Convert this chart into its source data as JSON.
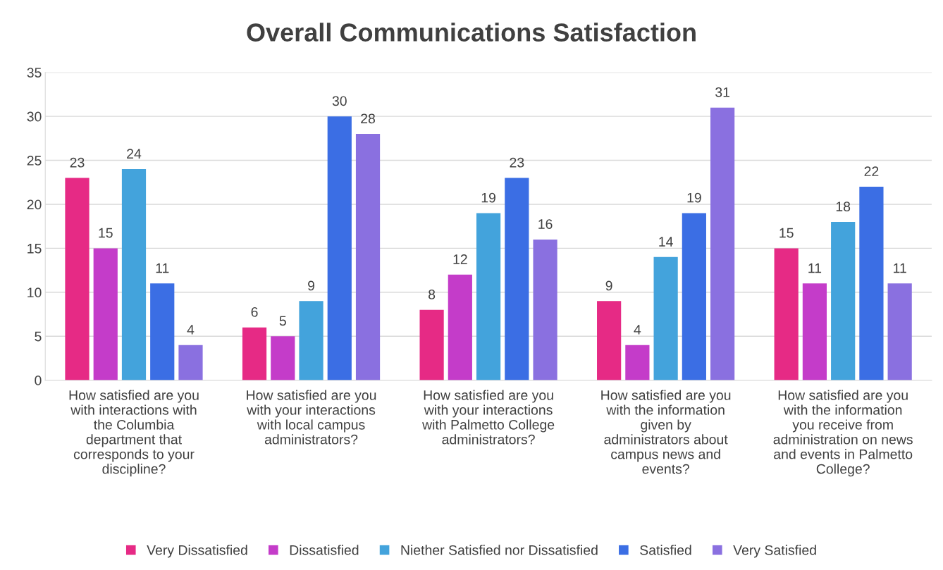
{
  "chart_data": {
    "type": "bar",
    "title": "Overall Communications Satisfaction",
    "categories": [
      "How satisfied are you with interactions with the Columbia department that corresponds to your discipline?",
      "How satisfied are you with your interactions with local campus administrators?",
      "How satisfied are you with your interactions with Palmetto College administrators?",
      "How satisfied are you with the information given by administrators about campus news and events?",
      "How satisfied are you with the information you receive from administration on news and events in Palmetto College?"
    ],
    "series": [
      {
        "name": "Very Dissatisfied",
        "color": "#e62a85",
        "values": [
          23,
          6,
          8,
          9,
          15
        ]
      },
      {
        "name": "Dissatisfied",
        "color": "#c43cc9",
        "values": [
          15,
          5,
          12,
          4,
          11
        ]
      },
      {
        "name": "Niether Satisfied nor Dissatisfied",
        "color": "#43a3dc",
        "values": [
          24,
          9,
          19,
          14,
          18
        ]
      },
      {
        "name": "Satisfied",
        "color": "#3b6ee4",
        "values": [
          11,
          30,
          23,
          19,
          22
        ]
      },
      {
        "name": "Very Satisfied",
        "color": "#8a70e0",
        "values": [
          4,
          28,
          16,
          31,
          11
        ]
      }
    ],
    "ylim": [
      0,
      35
    ],
    "yticks": [
      0,
      5,
      10,
      15,
      20,
      25,
      30,
      35
    ],
    "grid": "y",
    "legend": "bottom",
    "data_labels": true
  }
}
